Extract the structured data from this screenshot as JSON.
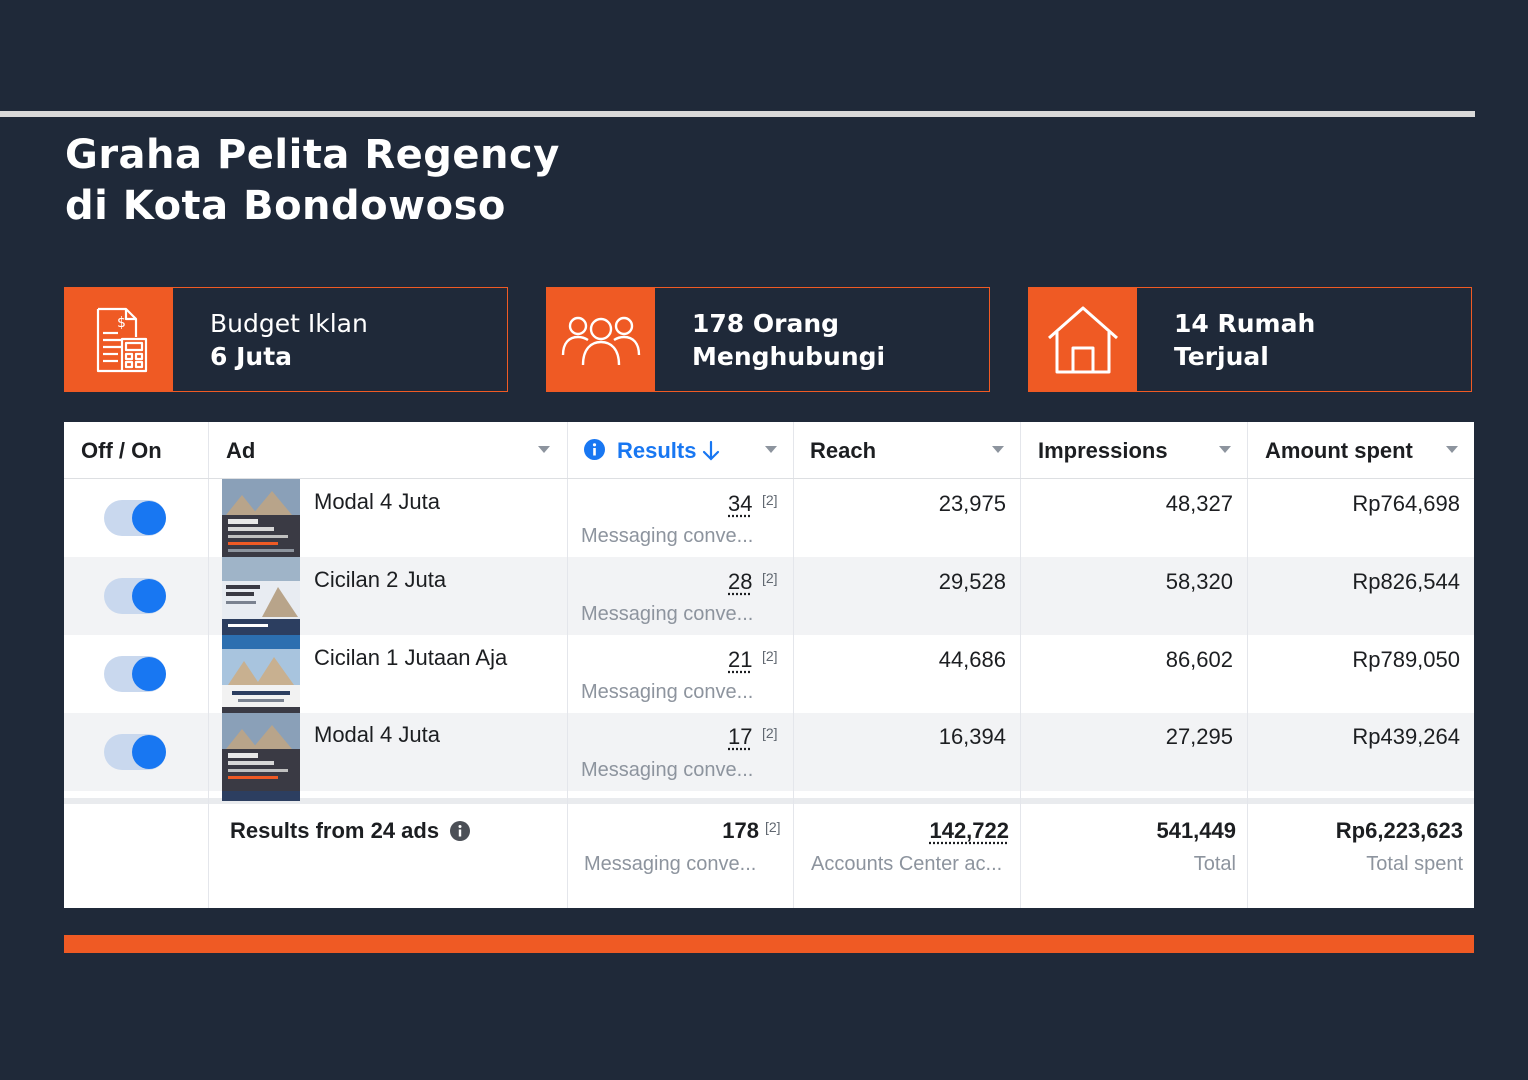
{
  "title": {
    "line1": "Graha Pelita Regency",
    "line2": "di Kota Bondowoso"
  },
  "cards": [
    {
      "icon": "budget-document-icon",
      "line1": "Budget Iklan",
      "line2": "6 Juta"
    },
    {
      "icon": "people-group-icon",
      "line1": "178 Orang",
      "line2": "Menghubungi"
    },
    {
      "icon": "house-icon",
      "line1": "14 Rumah",
      "line2": "Terjual"
    }
  ],
  "table": {
    "headers": {
      "toggle": "Off / On",
      "ad": "Ad",
      "results": "Results",
      "reach": "Reach",
      "impressions": "Impressions",
      "amount": "Amount spent"
    },
    "rows": [
      {
        "on": true,
        "ad": "Modal 4 Juta",
        "results": "34",
        "results_note": "[2]",
        "results_sub": "Messaging conve...",
        "reach": "23,975",
        "impressions": "48,327",
        "amount": "Rp764,698"
      },
      {
        "on": true,
        "ad": "Cicilan 2 Juta",
        "results": "28",
        "results_note": "[2]",
        "results_sub": "Messaging conve...",
        "reach": "29,528",
        "impressions": "58,320",
        "amount": "Rp826,544"
      },
      {
        "on": true,
        "ad": "Cicilan 1 Jutaan Aja",
        "results": "21",
        "results_note": "[2]",
        "results_sub": "Messaging conve...",
        "reach": "44,686",
        "impressions": "86,602",
        "amount": "Rp789,050"
      },
      {
        "on": true,
        "ad": "Modal 4 Juta",
        "results": "17",
        "results_note": "[2]",
        "results_sub": "Messaging conve...",
        "reach": "16,394",
        "impressions": "27,295",
        "amount": "Rp439,264"
      }
    ],
    "summary": {
      "label": "Results from 24 ads",
      "results": "178",
      "results_note": "[2]",
      "results_sub": "Messaging conve...",
      "reach": "142,722",
      "reach_sub": "Accounts Center ac...",
      "impressions": "541,449",
      "impressions_sub": "Total",
      "amount": "Rp6,223,623",
      "amount_sub": "Total spent"
    }
  },
  "colors": {
    "background": "#1f2939",
    "accent": "#ef5a24",
    "toggle_on": "#1877f2",
    "link_blue": "#1877f2"
  }
}
